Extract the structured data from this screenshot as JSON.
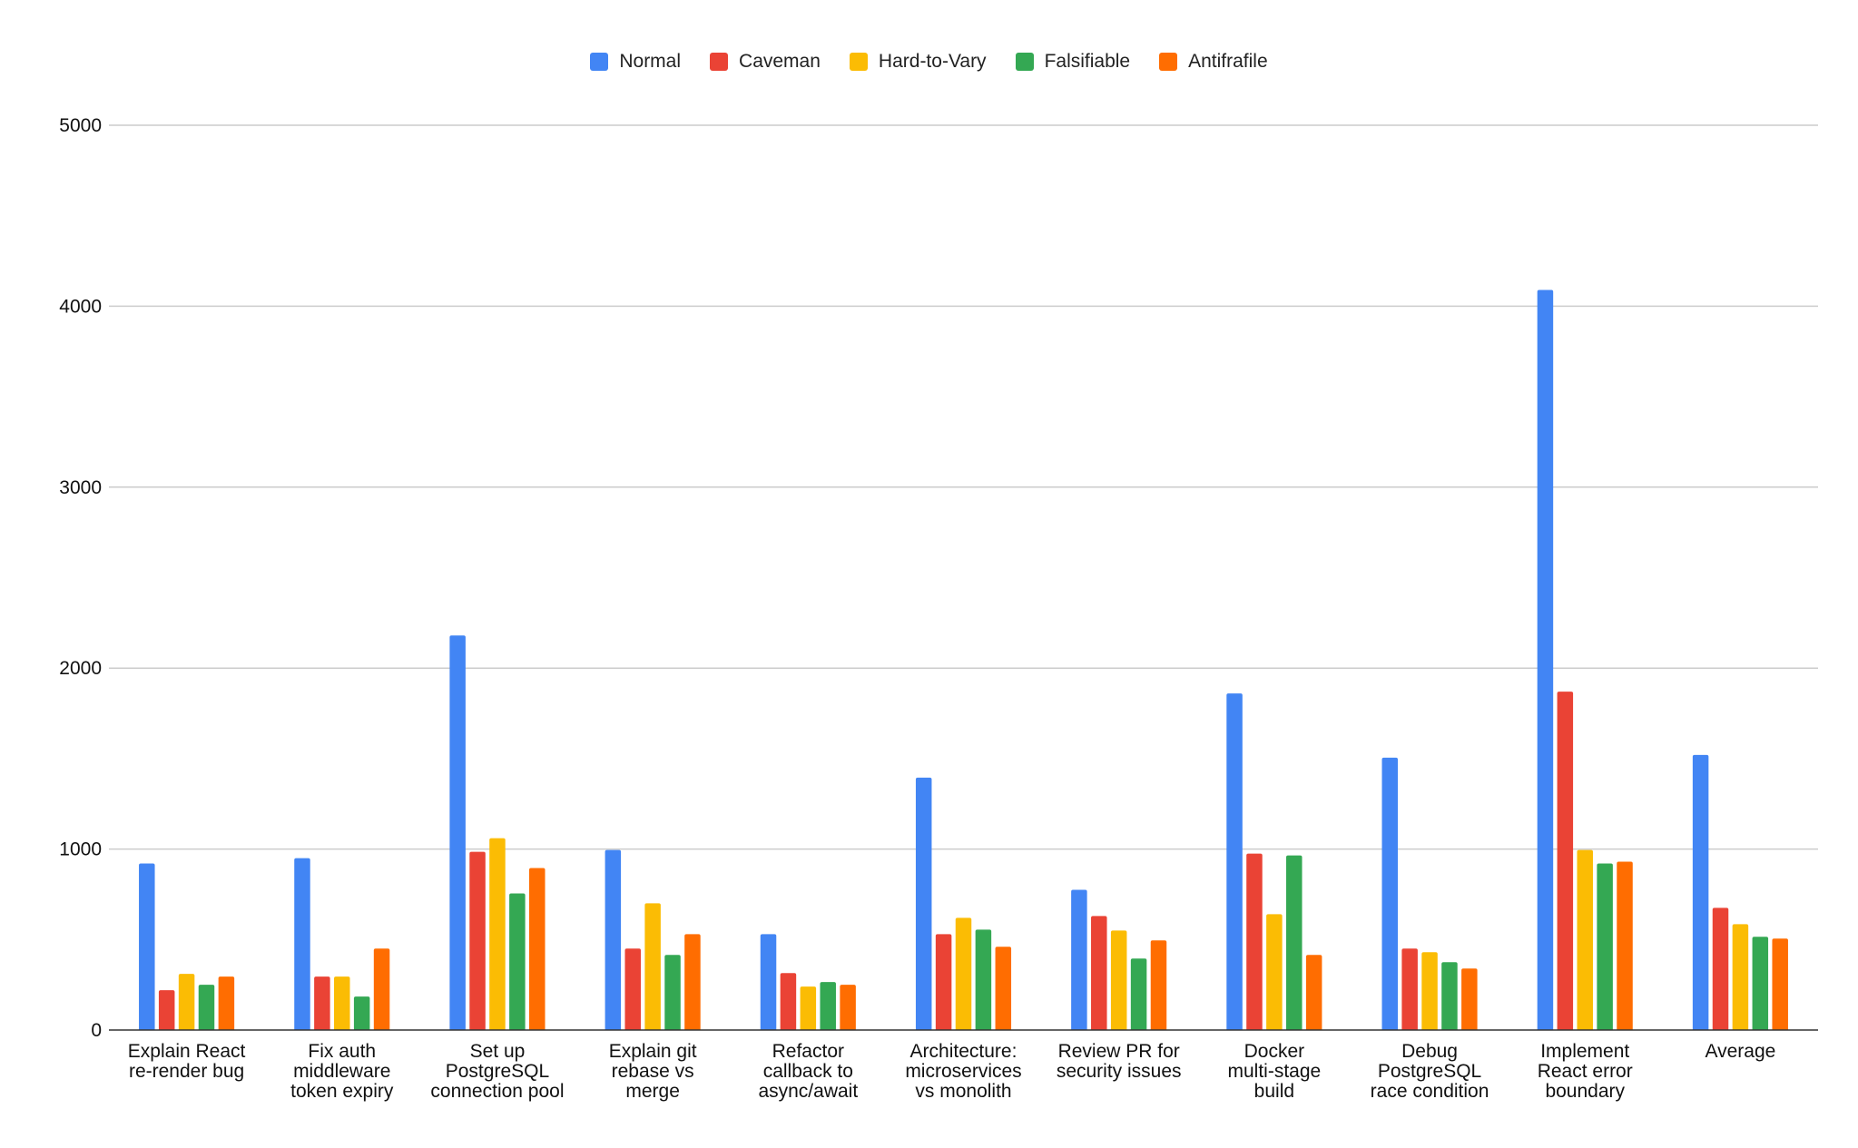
{
  "chart_data": {
    "type": "bar",
    "title": "",
    "xlabel": "",
    "ylabel": "",
    "ylim": [
      0,
      5000
    ],
    "yticks": [
      0,
      1000,
      2000,
      3000,
      4000,
      5000
    ],
    "grid": true,
    "legend_position": "top-center",
    "categories": [
      [
        "Explain React",
        "re-render bug"
      ],
      [
        "Fix auth",
        "middleware",
        "token expiry"
      ],
      [
        "Set up",
        "PostgreSQL",
        "connection pool"
      ],
      [
        "Explain git",
        "rebase vs",
        "merge"
      ],
      [
        "Refactor",
        "callback to",
        "async/await"
      ],
      [
        "Architecture:",
        "microservices",
        "vs monolith"
      ],
      [
        "Review PR for",
        "security issues"
      ],
      [
        "Docker",
        "multi-stage",
        "build"
      ],
      [
        "Debug",
        "PostgreSQL",
        "race condition"
      ],
      [
        "Implement",
        "React error",
        "boundary"
      ],
      [
        "Average"
      ]
    ],
    "series": [
      {
        "name": "Normal",
        "color": "#4285f4",
        "values": [
          920,
          950,
          2180,
          995,
          530,
          1395,
          775,
          1860,
          1505,
          4090,
          1520
        ]
      },
      {
        "name": "Caveman",
        "color": "#ea4335",
        "values": [
          220,
          295,
          985,
          450,
          315,
          530,
          630,
          975,
          450,
          1870,
          675
        ]
      },
      {
        "name": "Hard-to-Vary",
        "color": "#fbbc04",
        "values": [
          310,
          295,
          1060,
          700,
          240,
          620,
          550,
          640,
          430,
          995,
          585
        ]
      },
      {
        "name": "Falsifiable",
        "color": "#34a853",
        "values": [
          250,
          185,
          755,
          415,
          265,
          555,
          395,
          965,
          375,
          920,
          515
        ]
      },
      {
        "name": "Antifrafile",
        "color": "#ff6d01",
        "values": [
          295,
          450,
          895,
          530,
          250,
          460,
          495,
          415,
          340,
          930,
          505
        ]
      }
    ]
  }
}
